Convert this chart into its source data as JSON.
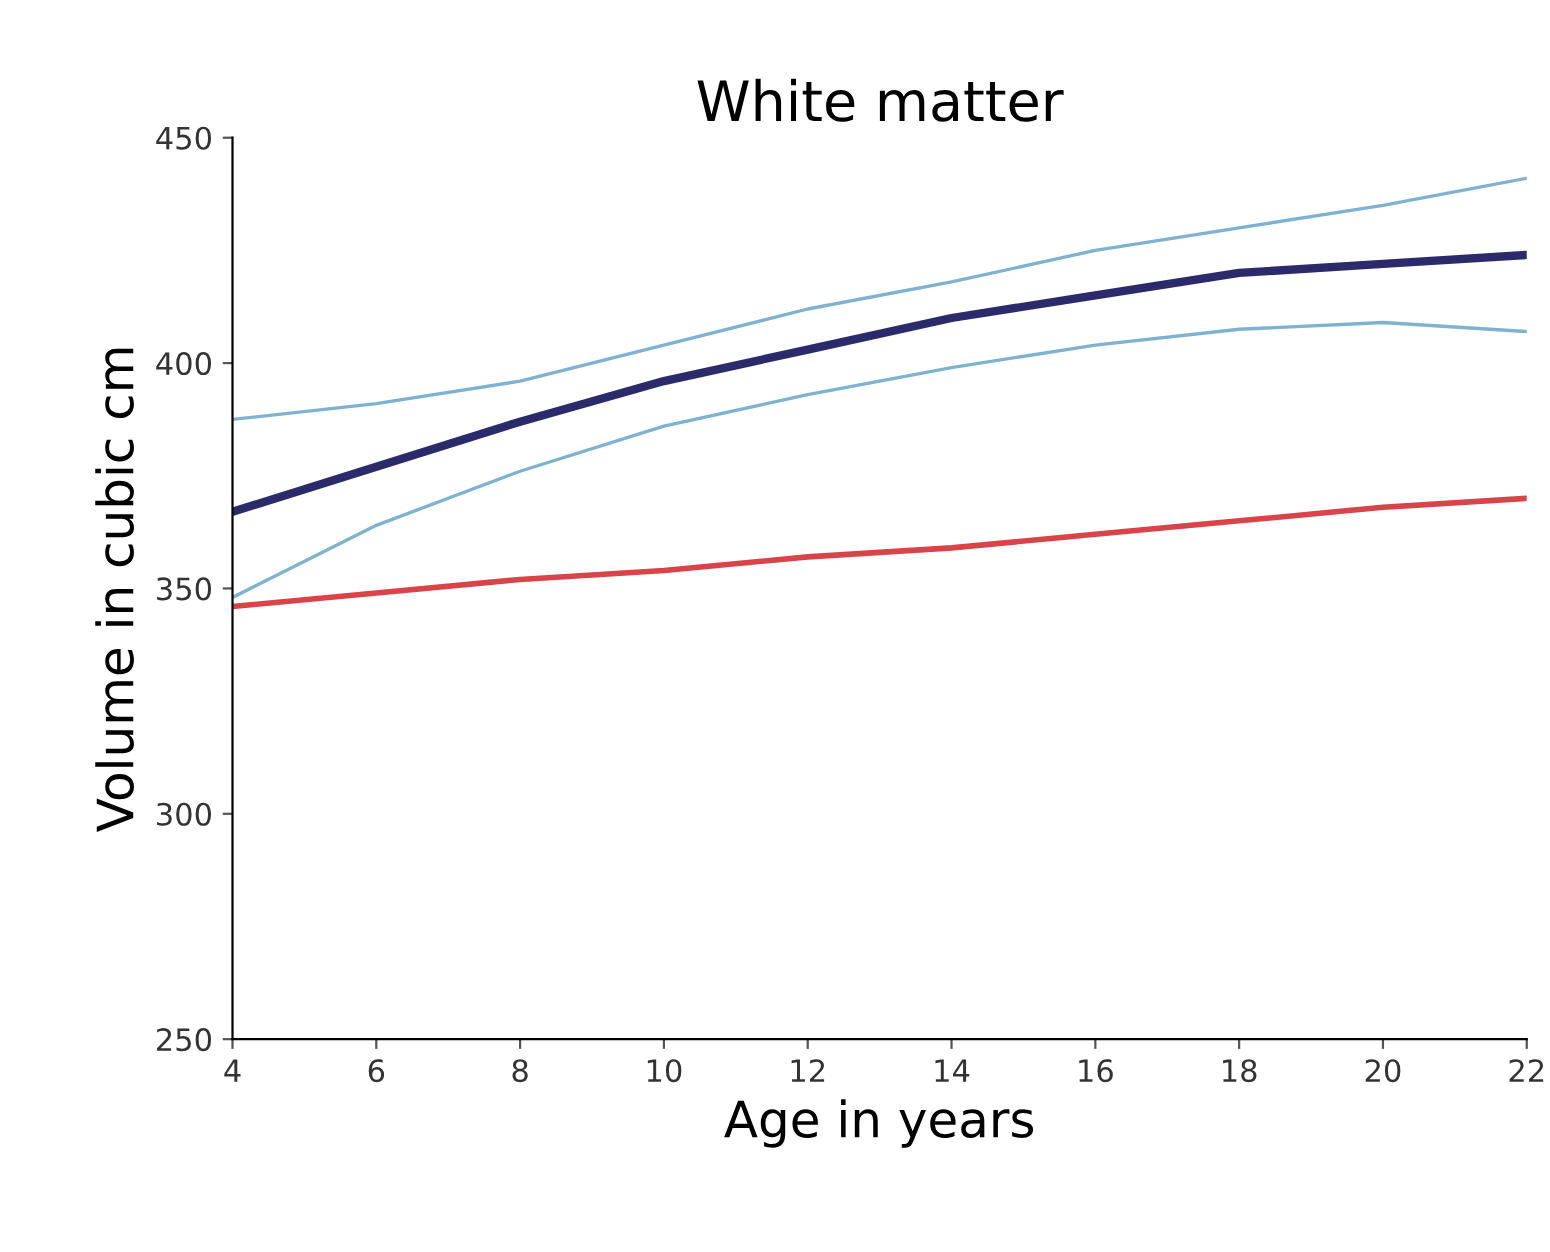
{
  "chart_data": {
    "type": "line",
    "title": "White matter",
    "xlabel": "Age in years",
    "ylabel": "Volume in cubic cm",
    "x": [
      4,
      6,
      8,
      10,
      12,
      14,
      16,
      18,
      20,
      22
    ],
    "series": [
      {
        "color": "#7fb2d0",
        "values": [
          387.5,
          391,
          396,
          404,
          412,
          418,
          425,
          430,
          435,
          441
        ]
      },
      {
        "color": "#7fb2d0",
        "values": [
          348,
          364,
          376,
          386,
          393,
          399,
          404,
          407.5,
          409,
          407
        ]
      },
      {
        "color": "#d9434a",
        "values": [
          346,
          349,
          352,
          354,
          357,
          359,
          362,
          365,
          368,
          370
        ]
      },
      {
        "color": "#2b2a6b",
        "values": [
          367,
          377,
          387,
          396,
          403,
          410,
          415,
          420,
          422,
          424
        ]
      }
    ],
    "xlim": [
      4,
      22
    ],
    "xticks": [
      4,
      6,
      8,
      10,
      12,
      14,
      16,
      18,
      20,
      22
    ],
    "ylim": [
      250,
      450
    ],
    "yticks": [
      250,
      300,
      350,
      400,
      450
    ],
    "grid": false,
    "legend": false
  }
}
